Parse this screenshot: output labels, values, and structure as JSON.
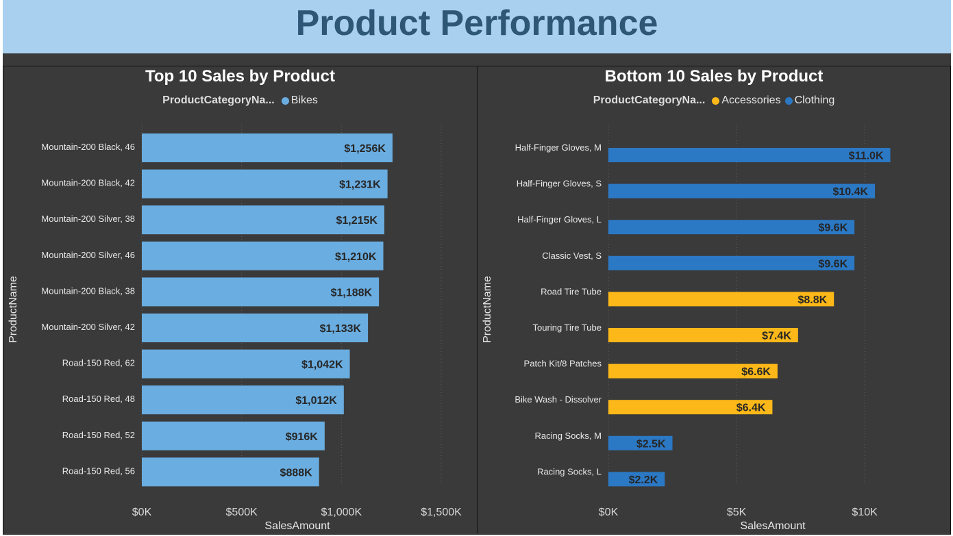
{
  "header": {
    "title": "Product Performance"
  },
  "colors": {
    "header_bg": "#a9d0ee",
    "header_text": "#2e5776",
    "panel_bg": "#3a3a3a",
    "bikes": "#6aade0",
    "accessories": "#fbb818",
    "clothing": "#2b78c4"
  },
  "chart_data": [
    {
      "type": "bar",
      "orientation": "horizontal",
      "title": "Top 10 Sales by Product",
      "xlabel": "SalesAmount",
      "ylabel": "ProductName",
      "legend_title": "ProductCategoryNa...",
      "legend": [
        {
          "name": "Bikes",
          "color": "#6aade0"
        }
      ],
      "xlim": [
        0,
        1500000
      ],
      "xticks": [
        0,
        500000,
        1000000,
        1500000
      ],
      "xtick_labels": [
        "$0K",
        "$500K",
        "$1,000K",
        "$1,500K"
      ],
      "grid": true,
      "categories": [
        "Mountain-200 Black, 46",
        "Mountain-200 Black, 42",
        "Mountain-200 Silver, 38",
        "Mountain-200 Silver, 46",
        "Mountain-200 Black, 38",
        "Mountain-200 Silver, 42",
        "Road-150 Red, 62",
        "Road-150 Red, 48",
        "Road-150 Red, 52",
        "Road-150 Red, 56"
      ],
      "values": [
        1256000,
        1231000,
        1215000,
        1210000,
        1188000,
        1133000,
        1042000,
        1012000,
        916000,
        888000
      ],
      "value_labels": [
        "$1,256K",
        "$1,231K",
        "$1,215K",
        "$1,210K",
        "$1,188K",
        "$1,133K",
        "$1,042K",
        "$1,012K",
        "$916K",
        "$888K"
      ],
      "bar_categories": [
        "Bikes",
        "Bikes",
        "Bikes",
        "Bikes",
        "Bikes",
        "Bikes",
        "Bikes",
        "Bikes",
        "Bikes",
        "Bikes"
      ]
    },
    {
      "type": "bar",
      "orientation": "horizontal",
      "title": "Bottom 10 Sales by Product",
      "xlabel": "SalesAmount",
      "ylabel": "ProductName",
      "legend_title": "ProductCategoryNa...",
      "legend": [
        {
          "name": "Accessories",
          "color": "#fbb818"
        },
        {
          "name": "Clothing",
          "color": "#2b78c4"
        }
      ],
      "xlim": [
        0,
        11200
      ],
      "xticks": [
        0,
        5000,
        10000
      ],
      "xtick_labels": [
        "$0K",
        "$5K",
        "$10K"
      ],
      "grid": true,
      "categories": [
        "Half-Finger Gloves, M",
        "Half-Finger Gloves, S",
        "Half-Finger Gloves, L",
        "Classic Vest, S",
        "Road Tire Tube",
        "Touring Tire Tube",
        "Patch Kit/8 Patches",
        "Bike Wash - Dissolver",
        "Racing Socks, M",
        "Racing Socks, L"
      ],
      "values": [
        11000,
        10400,
        9600,
        9600,
        8800,
        7400,
        6600,
        6400,
        2500,
        2200
      ],
      "value_labels": [
        "$11.0K",
        "$10.4K",
        "$9.6K",
        "$9.6K",
        "$8.8K",
        "$7.4K",
        "$6.6K",
        "$6.4K",
        "$2.5K",
        "$2.2K"
      ],
      "bar_categories": [
        "Clothing",
        "Clothing",
        "Clothing",
        "Clothing",
        "Accessories",
        "Accessories",
        "Accessories",
        "Accessories",
        "Clothing",
        "Clothing"
      ]
    }
  ]
}
